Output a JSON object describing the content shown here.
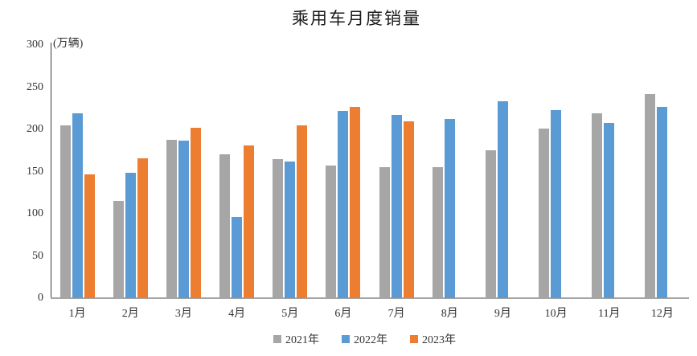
{
  "chart_data": {
    "type": "bar",
    "title": "乘用车月度销量",
    "y_unit_label": "(万辆)",
    "categories": [
      "1月",
      "2月",
      "3月",
      "4月",
      "5月",
      "6月",
      "7月",
      "8月",
      "9月",
      "10月",
      "11月",
      "12月"
    ],
    "series": [
      {
        "name": "2021年",
        "color": "#a6a6a6",
        "values": [
          204.5,
          115.6,
          187.4,
          170.8,
          164.6,
          156.9,
          155.1,
          155.2,
          175.1,
          200.7,
          219.2,
          242.2
        ]
      },
      {
        "name": "2022年",
        "color": "#5b9bd5",
        "values": [
          218.6,
          148.7,
          186.4,
          96.5,
          162.3,
          222.2,
          217.4,
          212.5,
          233.2,
          223.1,
          207.5,
          226.3
        ]
      },
      {
        "name": "2023年",
        "color": "#ed7d31",
        "values": [
          146.9,
          165.3,
          201.7,
          181.1,
          205.2,
          226.8,
          210.0,
          null,
          null,
          null,
          null,
          null
        ]
      }
    ],
    "ylim": [
      0,
      300
    ],
    "yticks": [
      0,
      50,
      100,
      150,
      200,
      250,
      300
    ],
    "legend_position": "bottom",
    "grid": false
  }
}
